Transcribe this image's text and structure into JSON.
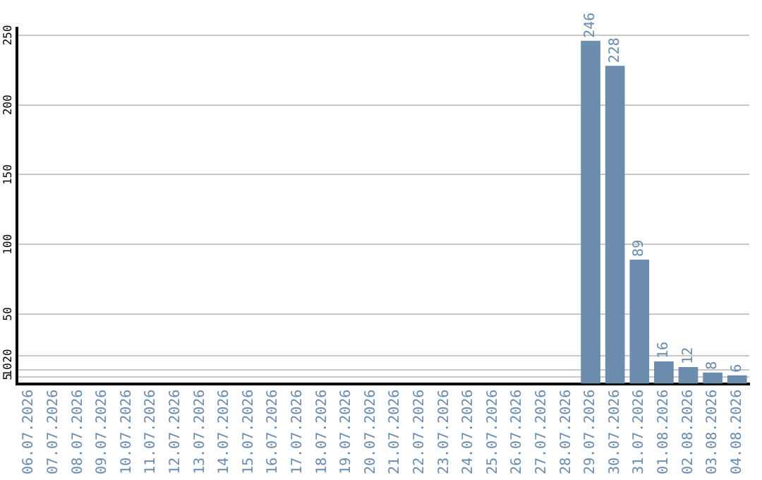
{
  "chart_data": {
    "type": "bar",
    "categories": [
      "06.07.2026",
      "07.07.2026",
      "08.07.2026",
      "09.07.2026",
      "10.07.2026",
      "11.07.2026",
      "12.07.2026",
      "13.07.2026",
      "14.07.2026",
      "15.07.2026",
      "16.07.2026",
      "17.07.2026",
      "18.07.2026",
      "19.07.2026",
      "20.07.2026",
      "21.07.2026",
      "22.07.2026",
      "23.07.2026",
      "24.07.2026",
      "25.07.2026",
      "26.07.2026",
      "27.07.2026",
      "28.07.2026",
      "29.07.2026",
      "30.07.2026",
      "31.07.2026",
      "01.08.2026",
      "02.08.2026",
      "03.08.2026",
      "04.08.2026"
    ],
    "values": [
      0,
      0,
      0,
      0,
      0,
      0,
      0,
      0,
      0,
      0,
      0,
      0,
      0,
      0,
      0,
      0,
      0,
      0,
      0,
      0,
      0,
      0,
      0,
      246,
      228,
      89,
      16,
      12,
      8,
      6
    ],
    "value_labels": [
      null,
      null,
      null,
      null,
      null,
      null,
      null,
      null,
      null,
      null,
      null,
      null,
      null,
      null,
      null,
      null,
      null,
      null,
      null,
      null,
      null,
      null,
      null,
      "246",
      "228",
      "89",
      "16",
      "12",
      "8",
      "6"
    ],
    "color": "#6b8cad",
    "ylim": [
      0,
      255
    ],
    "yticks": [
      5,
      10,
      20,
      50,
      100,
      150,
      200,
      250
    ],
    "grid": "y"
  }
}
